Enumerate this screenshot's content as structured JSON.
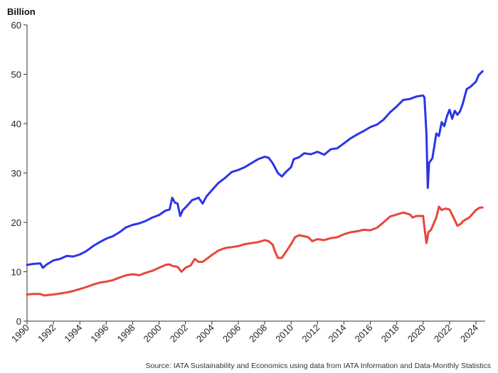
{
  "chart_data": {
    "type": "line",
    "ylabel": "Billion",
    "source": "Source: IATA Sustainability and Economics using data from IATA Information and Data-Monthly Statistics",
    "xlim": [
      1990,
      2024.7
    ],
    "ylim": [
      0,
      60
    ],
    "x_ticks": [
      "1990",
      "1992",
      "1994",
      "1996",
      "1998",
      "2000",
      "2002",
      "2004",
      "2006",
      "2008",
      "2010",
      "2012",
      "2014",
      "2016",
      "2018",
      "2020",
      "2022",
      "2024"
    ],
    "y_ticks": [
      "0",
      "10",
      "20",
      "30",
      "40",
      "50",
      "60"
    ],
    "grid": false,
    "series": [
      {
        "color": "#2b35e8",
        "points": [
          [
            1990,
            11.4
          ],
          [
            1990.5,
            11.6
          ],
          [
            1991,
            11.7
          ],
          [
            1991.2,
            10.8
          ],
          [
            1991.5,
            11.5
          ],
          [
            1992,
            12.3
          ],
          [
            1992.5,
            12.6
          ],
          [
            1993,
            13.2
          ],
          [
            1993.5,
            13.1
          ],
          [
            1994,
            13.5
          ],
          [
            1994.5,
            14.2
          ],
          [
            1995,
            15.2
          ],
          [
            1995.5,
            16.0
          ],
          [
            1996,
            16.7
          ],
          [
            1996.5,
            17.2
          ],
          [
            1997,
            18.0
          ],
          [
            1997.5,
            19.0
          ],
          [
            1998,
            19.5
          ],
          [
            1998.5,
            19.8
          ],
          [
            1999,
            20.3
          ],
          [
            1999.5,
            21.0
          ],
          [
            2000,
            21.5
          ],
          [
            2000.5,
            22.4
          ],
          [
            2000.8,
            22.6
          ],
          [
            2001,
            25.0
          ],
          [
            2001.2,
            24.0
          ],
          [
            2001.4,
            23.8
          ],
          [
            2001.6,
            21.3
          ],
          [
            2001.8,
            22.5
          ],
          [
            2002,
            23.0
          ],
          [
            2002.5,
            24.5
          ],
          [
            2003,
            25.0
          ],
          [
            2003.3,
            23.8
          ],
          [
            2003.6,
            25.3
          ],
          [
            2004,
            26.5
          ],
          [
            2004.5,
            28.0
          ],
          [
            2005,
            29.0
          ],
          [
            2005.5,
            30.2
          ],
          [
            2006,
            30.6
          ],
          [
            2006.5,
            31.2
          ],
          [
            2007,
            32.0
          ],
          [
            2007.5,
            32.8
          ],
          [
            2008,
            33.3
          ],
          [
            2008.3,
            33.1
          ],
          [
            2008.6,
            32.0
          ],
          [
            2009,
            30.0
          ],
          [
            2009.3,
            29.3
          ],
          [
            2009.6,
            30.2
          ],
          [
            2010,
            31.2
          ],
          [
            2010.2,
            32.8
          ],
          [
            2010.6,
            33.2
          ],
          [
            2011,
            34.0
          ],
          [
            2011.5,
            33.8
          ],
          [
            2012,
            34.3
          ],
          [
            2012.5,
            33.7
          ],
          [
            2013,
            34.8
          ],
          [
            2013.5,
            35.0
          ],
          [
            2014,
            36.0
          ],
          [
            2014.5,
            37.0
          ],
          [
            2015,
            37.8
          ],
          [
            2015.5,
            38.5
          ],
          [
            2016,
            39.3
          ],
          [
            2016.5,
            39.8
          ],
          [
            2017,
            40.8
          ],
          [
            2017.5,
            42.3
          ],
          [
            2018,
            43.5
          ],
          [
            2018.5,
            44.8
          ],
          [
            2019,
            45.0
          ],
          [
            2019.5,
            45.5
          ],
          [
            2020,
            45.7
          ],
          [
            2020.1,
            45.3
          ],
          [
            2020.25,
            38.0
          ],
          [
            2020.35,
            27.0
          ],
          [
            2020.45,
            32.0
          ],
          [
            2020.7,
            33.0
          ],
          [
            2021,
            38.0
          ],
          [
            2021.2,
            37.5
          ],
          [
            2021.4,
            40.3
          ],
          [
            2021.6,
            39.5
          ],
          [
            2021.8,
            41.5
          ],
          [
            2022,
            42.8
          ],
          [
            2022.2,
            41.0
          ],
          [
            2022.4,
            42.6
          ],
          [
            2022.6,
            41.8
          ],
          [
            2022.8,
            42.5
          ],
          [
            2023,
            44.0
          ],
          [
            2023.3,
            47.0
          ],
          [
            2023.6,
            47.5
          ],
          [
            2024,
            48.5
          ],
          [
            2024.2,
            49.8
          ],
          [
            2024.5,
            50.6
          ]
        ]
      },
      {
        "color": "#e8463c",
        "points": [
          [
            1990,
            5.4
          ],
          [
            1990.5,
            5.5
          ],
          [
            1991,
            5.5
          ],
          [
            1991.3,
            5.2
          ],
          [
            1991.6,
            5.3
          ],
          [
            1992,
            5.4
          ],
          [
            1992.5,
            5.6
          ],
          [
            1993,
            5.8
          ],
          [
            1993.5,
            6.1
          ],
          [
            1994,
            6.5
          ],
          [
            1994.5,
            6.9
          ],
          [
            1995,
            7.4
          ],
          [
            1995.5,
            7.8
          ],
          [
            1996,
            8.0
          ],
          [
            1996.5,
            8.3
          ],
          [
            1997,
            8.8
          ],
          [
            1997.5,
            9.3
          ],
          [
            1998,
            9.5
          ],
          [
            1998.5,
            9.3
          ],
          [
            1999,
            9.8
          ],
          [
            1999.5,
            10.2
          ],
          [
            2000,
            10.8
          ],
          [
            2000.5,
            11.4
          ],
          [
            2000.8,
            11.5
          ],
          [
            2001,
            11.2
          ],
          [
            2001.4,
            11.0
          ],
          [
            2001.7,
            10.0
          ],
          [
            2002,
            10.8
          ],
          [
            2002.4,
            11.3
          ],
          [
            2002.7,
            12.6
          ],
          [
            2003,
            12.0
          ],
          [
            2003.3,
            12.0
          ],
          [
            2003.6,
            12.6
          ],
          [
            2004,
            13.4
          ],
          [
            2004.5,
            14.3
          ],
          [
            2005,
            14.8
          ],
          [
            2005.5,
            15.0
          ],
          [
            2006,
            15.2
          ],
          [
            2006.5,
            15.6
          ],
          [
            2007,
            15.8
          ],
          [
            2007.5,
            16.0
          ],
          [
            2008,
            16.4
          ],
          [
            2008.3,
            16.2
          ],
          [
            2008.6,
            15.5
          ],
          [
            2008.8,
            14.0
          ],
          [
            2009,
            12.8
          ],
          [
            2009.3,
            12.8
          ],
          [
            2009.6,
            14.0
          ],
          [
            2010,
            15.6
          ],
          [
            2010.3,
            17.0
          ],
          [
            2010.6,
            17.4
          ],
          [
            2011,
            17.2
          ],
          [
            2011.3,
            17.0
          ],
          [
            2011.6,
            16.2
          ],
          [
            2012,
            16.6
          ],
          [
            2012.5,
            16.4
          ],
          [
            2013,
            16.8
          ],
          [
            2013.5,
            17.0
          ],
          [
            2014,
            17.6
          ],
          [
            2014.5,
            18.0
          ],
          [
            2015,
            18.2
          ],
          [
            2015.5,
            18.5
          ],
          [
            2016,
            18.4
          ],
          [
            2016.5,
            18.9
          ],
          [
            2017,
            20.0
          ],
          [
            2017.5,
            21.2
          ],
          [
            2018,
            21.6
          ],
          [
            2018.5,
            22.0
          ],
          [
            2019,
            21.6
          ],
          [
            2019.2,
            21.0
          ],
          [
            2019.5,
            21.3
          ],
          [
            2020,
            21.3
          ],
          [
            2020.1,
            19.0
          ],
          [
            2020.25,
            15.8
          ],
          [
            2020.4,
            18.0
          ],
          [
            2020.6,
            18.5
          ],
          [
            2021,
            21.0
          ],
          [
            2021.2,
            23.2
          ],
          [
            2021.4,
            22.5
          ],
          [
            2021.7,
            22.8
          ],
          [
            2022,
            22.6
          ],
          [
            2022.3,
            21.0
          ],
          [
            2022.6,
            19.3
          ],
          [
            2022.9,
            19.8
          ],
          [
            2023,
            20.2
          ],
          [
            2023.5,
            21.0
          ],
          [
            2024,
            22.5
          ],
          [
            2024.3,
            23.0
          ],
          [
            2024.5,
            23.0
          ]
        ]
      }
    ]
  }
}
